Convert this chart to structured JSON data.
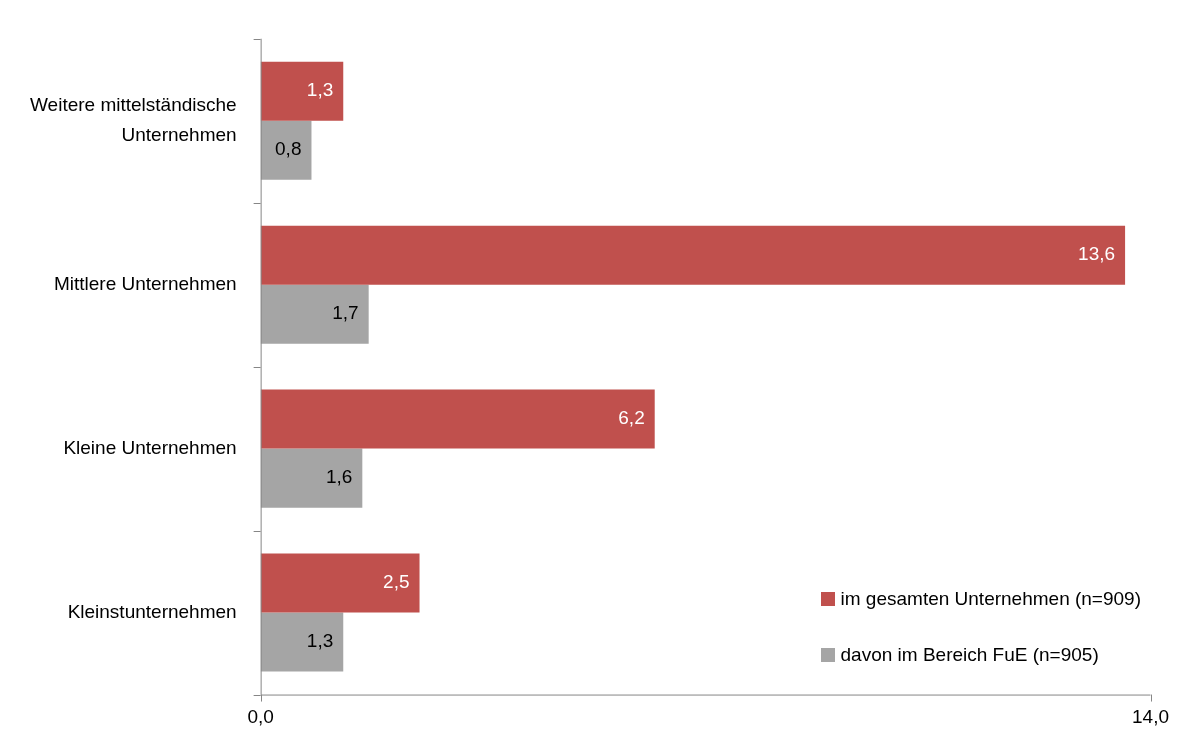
{
  "chart_data": {
    "type": "bar",
    "orientation": "horizontal",
    "categories": [
      "Weitere mittelständische Unternehmen",
      "Mittlere Unternehmen",
      "Kleine Unternehmen",
      "Kleinstunternehmen"
    ],
    "series": [
      {
        "name": "im gesamten Unternehmen (n=909)",
        "color": "#c0504d",
        "values": [
          1.3,
          13.6,
          6.2,
          2.5
        ],
        "value_labels": [
          "1,3",
          "13,6",
          "6,2",
          "2,5"
        ]
      },
      {
        "name": "davon im Bereich FuE (n=905)",
        "color": "#a5a5a5",
        "values": [
          0.8,
          1.7,
          1.6,
          1.3
        ],
        "value_labels": [
          "0,8",
          "1,7",
          "1,6",
          "1,3"
        ]
      }
    ],
    "xlim": [
      0,
      14
    ],
    "xticks": [
      {
        "value": 0,
        "label": "0,0"
      },
      {
        "value": 14,
        "label": "14,0"
      }
    ],
    "grid": false,
    "legend": "bottom right"
  }
}
